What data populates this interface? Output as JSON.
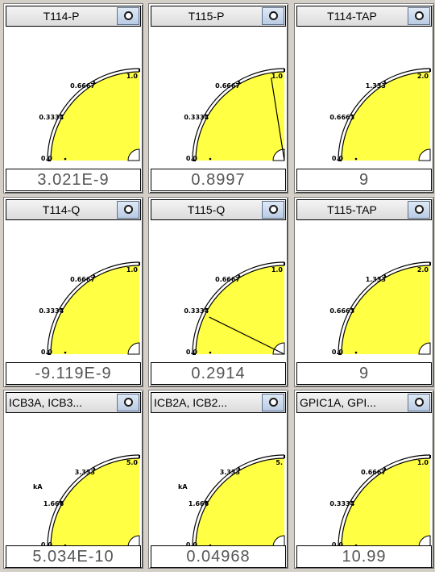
{
  "colors": {
    "gauge_fill": "#ffff44",
    "background": "#d4d0c8"
  },
  "panels": [
    {
      "title": "T114-P",
      "labels": [
        "0.0",
        "0.3334",
        "0.6667",
        "1.0"
      ],
      "unit": "",
      "value": "3.021E-9",
      "needle": null
    },
    {
      "title": "T115-P",
      "labels": [
        "0.0",
        "0.3334",
        "0.6667",
        "1.0"
      ],
      "unit": "",
      "value": "0.8997",
      "needle": 0.8997
    },
    {
      "title": "T114-TAP",
      "labels": [
        "0.0",
        "0.6663",
        "1.333",
        "2.0"
      ],
      "unit": "",
      "value": "9",
      "needle": null
    },
    {
      "title": "T114-Q",
      "labels": [
        "0.0",
        "0.3334",
        "0.6667",
        "1.0"
      ],
      "unit": "",
      "value": "-9.119E-9",
      "needle": null
    },
    {
      "title": "T115-Q",
      "labels": [
        "0.0",
        "0.3334",
        "0.6667",
        "1.0"
      ],
      "unit": "",
      "value": "0.2914",
      "needle": 0.2914
    },
    {
      "title": "T115-TAP",
      "labels": [
        "0.0",
        "0.6663",
        "1.333",
        "2.0"
      ],
      "unit": "",
      "value": "9",
      "needle": null
    },
    {
      "title": "ICB3A, ICB3...",
      "labels": [
        "0.0",
        "1.666",
        "3.333",
        "5.0"
      ],
      "unit": "kA",
      "value": "5.034E-10",
      "needle": null
    },
    {
      "title": "ICB2A, ICB2...",
      "labels": [
        "0.0",
        "1.666",
        "3.333",
        "5."
      ],
      "unit": "kA",
      "value": "0.04968",
      "needle": null
    },
    {
      "title": "GPIC1A, GPI...",
      "labels": [
        "0.0",
        "0.3334",
        "0.6667",
        "1.0"
      ],
      "unit": "",
      "value": "10.99",
      "needle": null
    }
  ]
}
